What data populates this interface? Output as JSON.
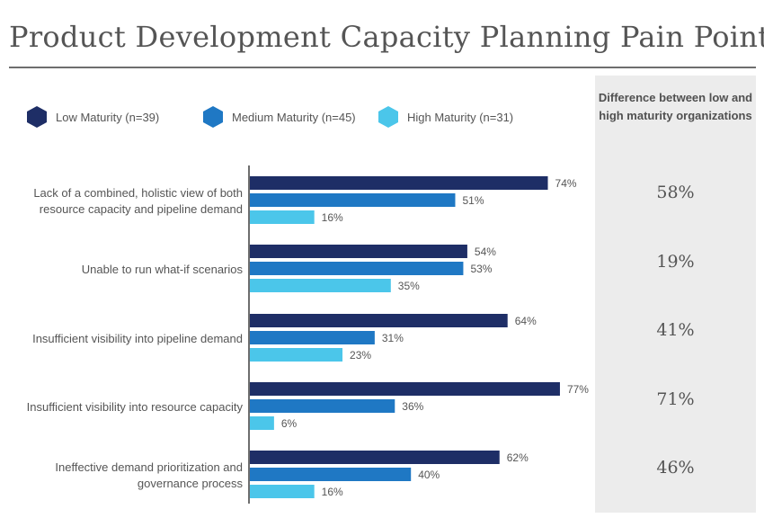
{
  "title": "Product Development Capacity Planning Pain Points",
  "legend": [
    {
      "label": "Low Maturity (n=39)",
      "color": "#1e2e66"
    },
    {
      "label": "Medium Maturity (n=45)",
      "color": "#1f78c4"
    },
    {
      "label": "High Maturity (n=31)",
      "color": "#4bc6ea"
    }
  ],
  "difference": {
    "header": "Difference between low and high maturity organizations",
    "values": [
      "58%",
      "19%",
      "41%",
      "71%",
      "46%"
    ]
  },
  "chart_data": {
    "type": "bar",
    "orientation": "horizontal",
    "categories": [
      "Lack of a combined, holistic view of both resource capacity and pipeline demand",
      "Unable to run what-if scenarios",
      "Insufficient visibility into pipeline demand",
      "Insufficient visibility into resource capacity",
      "Ineffective demand prioritization and governance process"
    ],
    "series": [
      {
        "name": "Low Maturity (n=39)",
        "color": "#1e2e66",
        "values": [
          74,
          54,
          64,
          77,
          62
        ]
      },
      {
        "name": "Medium Maturity (n=45)",
        "color": "#1f78c4",
        "values": [
          51,
          53,
          31,
          36,
          40
        ]
      },
      {
        "name": "High Maturity (n=31)",
        "color": "#4bc6ea",
        "values": [
          16,
          35,
          23,
          6,
          16
        ]
      }
    ],
    "value_suffix": "%",
    "xlim": [
      0,
      100
    ],
    "grid": false,
    "legend_position": "top"
  }
}
